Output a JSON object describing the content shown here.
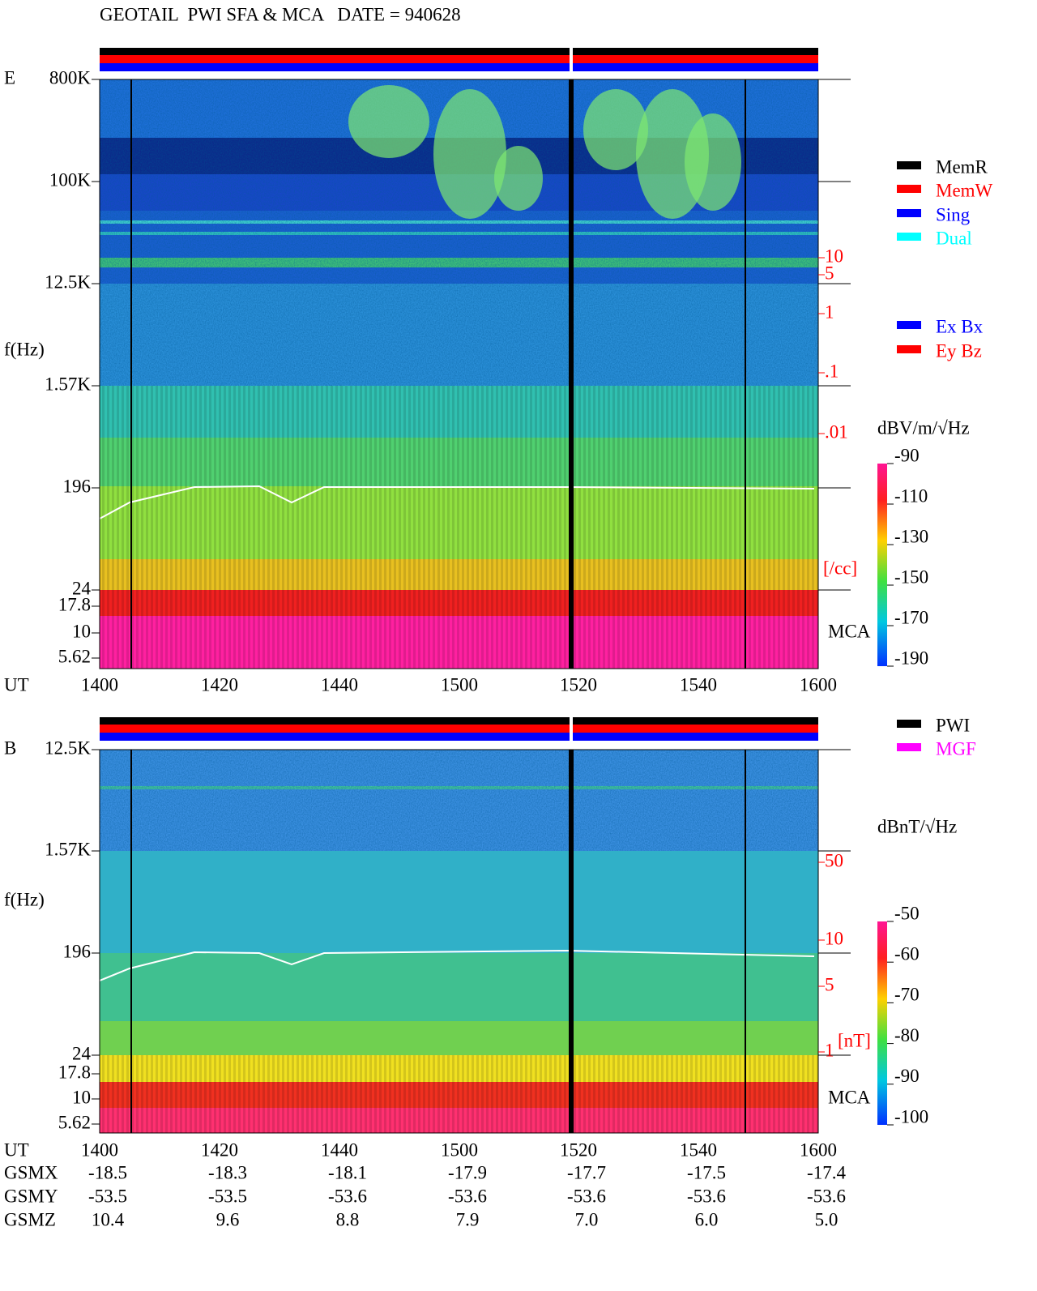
{
  "title": "GEOTAIL  PWI SFA & MCA   DATE = 940628",
  "panel_e": {
    "label": "E",
    "y_axis_label": "f(Hz)",
    "freq_ticks": [
      "800K",
      "100K",
      "12.5K",
      "1.57K",
      "196",
      "24",
      "17.8",
      "10",
      "5.62"
    ],
    "ut_label": "UT",
    "ut_ticks": [
      "1400",
      "1420",
      "1440",
      "1500",
      "1520",
      "1540",
      "1600"
    ],
    "mca_label": "MCA",
    "density_ticks": [
      "10",
      "5",
      "1",
      ".1",
      ".01"
    ],
    "density_unit": "[/cc]",
    "colorbar_unit": "dBV/m/√Hz",
    "colorbar_ticks": [
      "-90",
      "-110",
      "-130",
      "-150",
      "-170",
      "-190"
    ]
  },
  "panel_b": {
    "label": "B",
    "y_axis_label": "f(Hz)",
    "freq_ticks": [
      "12.5K",
      "1.57K",
      "196",
      "24",
      "17.8",
      "10",
      "5.62"
    ],
    "ut_label": "UT",
    "ut_ticks": [
      "1400",
      "1420",
      "1440",
      "1500",
      "1520",
      "1540",
      "1600"
    ],
    "mca_label": "MCA",
    "field_ticks": [
      "50",
      "10",
      "5",
      "1"
    ],
    "field_unit": "[nT]",
    "colorbar_unit": "dBnT/√Hz",
    "colorbar_ticks": [
      "-50",
      "-60",
      "-70",
      "-80",
      "-90",
      "-100"
    ]
  },
  "legend_mode": [
    {
      "label": "MemR",
      "color": "#000000"
    },
    {
      "label": "MemW",
      "color": "#ff0000"
    },
    {
      "label": "Sing",
      "color": "#0000ff"
    },
    {
      "label": "Dual",
      "color": "#00ffff"
    }
  ],
  "legend_antenna": [
    {
      "label": "Ex Bx",
      "color": "#0000ff"
    },
    {
      "label": "Ey Bz",
      "color": "#ff0000"
    }
  ],
  "legend_source": [
    {
      "label": "PWI",
      "color": "#000000"
    },
    {
      "label": "MGF",
      "color": "#ff00ff"
    }
  ],
  "orbit": [
    {
      "label": "GSMX",
      "values": [
        "-18.5",
        "-18.3",
        "-18.1",
        "-17.9",
        "-17.7",
        "-17.5",
        "-17.4"
      ]
    },
    {
      "label": "GSMY",
      "values": [
        "-53.5",
        "-53.5",
        "-53.6",
        "-53.6",
        "-53.6",
        "-53.6",
        "-53.6"
      ]
    },
    {
      "label": "GSMZ",
      "values": [
        "10.4",
        "9.6",
        "8.8",
        "7.9",
        "7.0",
        "6.0",
        "5.0"
      ]
    }
  ]
}
